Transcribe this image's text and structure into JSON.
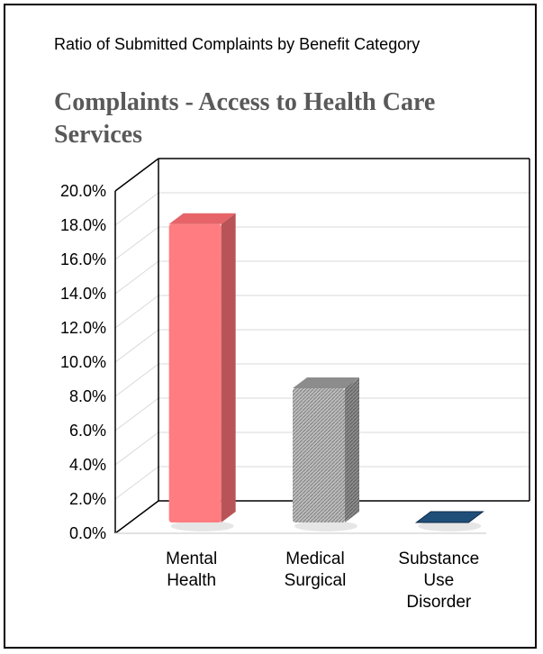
{
  "header": "Ratio of Submitted Complaints by Benefit Category",
  "chart_data": {
    "type": "bar",
    "title": "Complaints - Access to Health Care Services",
    "categories": [
      [
        "Mental",
        "Health"
      ],
      [
        "Medical",
        "Surgical"
      ],
      [
        "Substance",
        "Use",
        "Disorder"
      ]
    ],
    "values": [
      18.0,
      8.1,
      0.0
    ],
    "ylim": [
      0,
      20
    ],
    "yticks": [
      "0.0%",
      "2.0%",
      "4.0%",
      "6.0%",
      "8.0%",
      "10.0%",
      "12.0%",
      "14.0%",
      "16.0%",
      "18.0%",
      "20.0%"
    ],
    "grid": true,
    "legend": "none",
    "colors": [
      "#ff7c80",
      "#a6a6a6",
      "#1f4e79"
    ]
  }
}
